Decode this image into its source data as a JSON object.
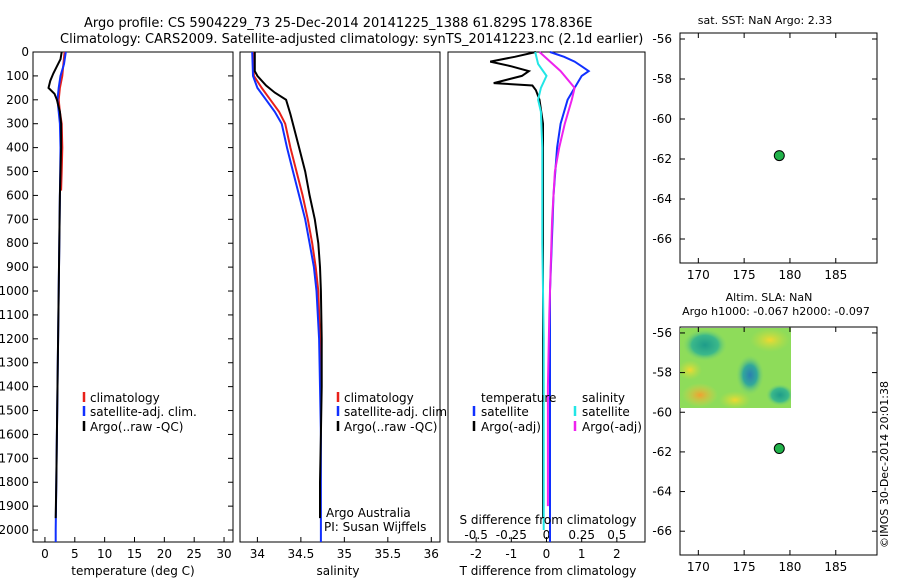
{
  "header": {
    "line1": "Argo profile: CS 5904229_73 25-Dec-2014 20141225_1388 61.829S 178.836E",
    "line2": "Climatology: CARS2009. Satellite-adjusted climatology: synTS_20141223.nc (2.1d earlier)"
  },
  "colors": {
    "climatology": "#e8201a",
    "satellite": "#1030ff",
    "argo": "#000000",
    "sal_satellite": "#22e6e6",
    "sal_argo": "#ee22ee",
    "marker": "#21b24a"
  },
  "chart_data": [
    {
      "type": "line",
      "id": "temperature",
      "xlabel": "temperature (deg C)",
      "ylabel": "",
      "xlim": [
        -2,
        31.5
      ],
      "ylim": [
        0,
        2050
      ],
      "y_inverted": true,
      "xticks": [
        "0",
        "5",
        "10",
        "15",
        "20",
        "25",
        "30"
      ],
      "yticks": [
        "0",
        "100",
        "200",
        "300",
        "400",
        "500",
        "600",
        "700",
        "800",
        "900",
        "1000",
        "1100",
        "1200",
        "1300",
        "1400",
        "1500",
        "1600",
        "1700",
        "1800",
        "1900",
        "2000"
      ],
      "legend": [
        "climatology",
        "satellite-adj. clim.",
        "Argo(..raw -QC)"
      ],
      "legend_position": "center-left",
      "series": [
        {
          "name": "climatology",
          "points": [
            [
              3.3,
              0
            ],
            [
              3.1,
              50
            ],
            [
              2.9,
              100
            ],
            [
              2.5,
              150
            ],
            [
              2.3,
              200
            ],
            [
              2.5,
              250
            ],
            [
              2.8,
              300
            ],
            [
              2.9,
              400
            ],
            [
              2.8,
              500
            ],
            [
              2.7,
              580
            ]
          ]
        },
        {
          "name": "satellite-adj. clim.",
          "points": [
            [
              3.5,
              0
            ],
            [
              3.2,
              50
            ],
            [
              2.6,
              100
            ],
            [
              2.3,
              150
            ],
            [
              2.1,
              200
            ],
            [
              2.3,
              250
            ],
            [
              2.5,
              300
            ],
            [
              2.6,
              400
            ],
            [
              2.5,
              600
            ],
            [
              2.4,
              800
            ],
            [
              2.3,
              1000
            ],
            [
              2.2,
              1200
            ],
            [
              2.1,
              1400
            ],
            [
              2.0,
              1600
            ],
            [
              1.9,
              1800
            ],
            [
              1.8,
              2000
            ],
            [
              1.8,
              2050
            ]
          ]
        },
        {
          "name": "Argo(..raw -QC)",
          "points": [
            [
              2.8,
              0
            ],
            [
              2.6,
              30
            ],
            [
              2.0,
              60
            ],
            [
              1.4,
              90
            ],
            [
              0.9,
              120
            ],
            [
              0.6,
              150
            ],
            [
              1.6,
              175
            ],
            [
              2.0,
              200
            ],
            [
              2.5,
              250
            ],
            [
              2.7,
              300
            ],
            [
              2.7,
              400
            ],
            [
              2.6,
              500
            ],
            [
              2.5,
              600
            ],
            [
              2.4,
              800
            ],
            [
              2.3,
              1000
            ],
            [
              2.2,
              1200
            ],
            [
              2.1,
              1400
            ],
            [
              2.0,
              1600
            ],
            [
              1.9,
              1800
            ],
            [
              1.8,
              1950
            ]
          ]
        }
      ]
    },
    {
      "type": "line",
      "id": "salinity",
      "xlabel": "salinity",
      "xlim": [
        33.8,
        36.1
      ],
      "ylim": [
        0,
        2050
      ],
      "y_inverted": true,
      "xticks": [
        "34",
        "34.5",
        "35",
        "35.5",
        "36"
      ],
      "legend": [
        "climatology",
        "satellite-adj. clim.",
        "Argo(..raw -QC)"
      ],
      "legend_position": "center-right",
      "annotations": [
        "Argo Australia",
        "PI: Susan Wijffels"
      ],
      "series": [
        {
          "name": "climatology",
          "points": [
            [
              33.95,
              0
            ],
            [
              33.96,
              100
            ],
            [
              34.05,
              150
            ],
            [
              34.15,
              200
            ],
            [
              34.25,
              250
            ],
            [
              34.32,
              300
            ],
            [
              34.38,
              400
            ],
            [
              34.45,
              500
            ],
            [
              34.52,
              600
            ],
            [
              34.58,
              700
            ],
            [
              34.63,
              800
            ],
            [
              34.67,
              900
            ],
            [
              34.7,
              1000
            ],
            [
              34.72,
              1200
            ],
            [
              34.73,
              1400
            ]
          ]
        },
        {
          "name": "satellite-adj. clim.",
          "points": [
            [
              33.94,
              0
            ],
            [
              33.95,
              100
            ],
            [
              34.0,
              150
            ],
            [
              34.1,
              200
            ],
            [
              34.2,
              250
            ],
            [
              34.28,
              300
            ],
            [
              34.34,
              400
            ],
            [
              34.41,
              500
            ],
            [
              34.48,
              600
            ],
            [
              34.55,
              700
            ],
            [
              34.6,
              800
            ],
            [
              34.65,
              900
            ],
            [
              34.68,
              1000
            ],
            [
              34.71,
              1200
            ],
            [
              34.72,
              1400
            ],
            [
              34.73,
              1600
            ],
            [
              34.73,
              1800
            ],
            [
              34.73,
              2050
            ]
          ]
        },
        {
          "name": "Argo(..raw -QC)",
          "points": [
            [
              33.97,
              0
            ],
            [
              33.97,
              80
            ],
            [
              34.0,
              100
            ],
            [
              34.1,
              140
            ],
            [
              34.2,
              170
            ],
            [
              34.33,
              200
            ],
            [
              34.38,
              260
            ],
            [
              34.48,
              400
            ],
            [
              34.55,
              500
            ],
            [
              34.6,
              600
            ],
            [
              34.66,
              700
            ],
            [
              34.7,
              800
            ],
            [
              34.72,
              900
            ],
            [
              34.73,
              1000
            ],
            [
              34.74,
              1200
            ],
            [
              34.74,
              1400
            ],
            [
              34.73,
              1600
            ],
            [
              34.72,
              1800
            ],
            [
              34.72,
              1950
            ]
          ]
        }
      ]
    },
    {
      "type": "line",
      "id": "difference",
      "xlabel": "T difference from climatology",
      "xlabel_top": "S difference from climatology",
      "xlim": [
        -2.8,
        2.8
      ],
      "ylim": [
        0,
        2050
      ],
      "y_inverted": true,
      "xticks": [
        "-2",
        "-1",
        "0",
        "1",
        "2"
      ],
      "xticks_S": [
        "-0.5",
        "-0.25",
        "0",
        "0.25",
        "0.5"
      ],
      "legend_left_title": "temperature",
      "legend_left": [
        "satellite",
        "Argo(-adj)"
      ],
      "legend_right_title": "salinity",
      "legend_right": [
        "satellite",
        "Argo(-adj)"
      ],
      "series": [
        {
          "name": "T satellite",
          "points": [
            [
              0.1,
              0
            ],
            [
              0.5,
              20
            ],
            [
              0.8,
              40
            ],
            [
              1.0,
              60
            ],
            [
              1.2,
              80
            ],
            [
              1.0,
              100
            ],
            [
              0.8,
              150
            ],
            [
              0.6,
              200
            ],
            [
              0.4,
              300
            ],
            [
              0.3,
              400
            ],
            [
              0.2,
              600
            ],
            [
              0.15,
              800
            ],
            [
              0.1,
              1000
            ],
            [
              0.1,
              1500
            ],
            [
              0.1,
              2000
            ],
            [
              0.1,
              2050
            ]
          ]
        },
        {
          "name": "T Argo(-adj)",
          "points": [
            [
              -0.3,
              0
            ],
            [
              -0.9,
              20
            ],
            [
              -1.6,
              40
            ],
            [
              -1.0,
              60
            ],
            [
              -0.5,
              80
            ],
            [
              -0.7,
              100
            ],
            [
              -1.5,
              130
            ],
            [
              -0.4,
              140
            ],
            [
              -0.3,
              160
            ],
            [
              -0.2,
              200
            ],
            [
              -0.1,
              300
            ],
            [
              -0.1,
              500
            ],
            [
              -0.1,
              800
            ],
            [
              -0.1,
              1000
            ],
            [
              -0.1,
              1500
            ],
            [
              -0.1,
              1950
            ]
          ]
        },
        {
          "name": "S satellite",
          "points": [
            [
              -0.08,
              0
            ],
            [
              -0.06,
              50
            ],
            [
              0.0,
              100
            ],
            [
              -0.04,
              150
            ],
            [
              -0.06,
              200
            ],
            [
              -0.04,
              250
            ],
            [
              -0.03,
              400
            ],
            [
              -0.03,
              800
            ],
            [
              -0.02,
              1200
            ],
            [
              -0.02,
              2000
            ]
          ]
        },
        {
          "name": "S Argo(-adj)",
          "points": [
            [
              -0.05,
              0
            ],
            [
              0.1,
              80
            ],
            [
              0.2,
              150
            ],
            [
              0.18,
              200
            ],
            [
              0.13,
              300
            ],
            [
              0.09,
              400
            ],
            [
              0.06,
              500
            ],
            [
              0.04,
              700
            ],
            [
              0.03,
              900
            ],
            [
              0.02,
              1100
            ],
            [
              0.01,
              1400
            ],
            [
              0.01,
              1900
            ]
          ]
        }
      ]
    },
    {
      "type": "scatter",
      "id": "sst_map",
      "title": "sat. SST: NaN Argo: 2.33",
      "xlim": [
        168,
        189.5
      ],
      "ylim": [
        -67.2,
        -55.7
      ],
      "xticks": [
        "170",
        "175",
        "180",
        "185"
      ],
      "yticks": [
        "-56",
        "-58",
        "-60",
        "-62",
        "-64",
        "-66"
      ],
      "points": [
        [
          178.836,
          -61.829
        ]
      ]
    },
    {
      "type": "heatmap",
      "id": "sla_map",
      "title_line1": "Altim. SLA: NaN",
      "title_line2": "Argo h1000: -0.067 h2000: -0.097",
      "xlim": [
        168,
        189.5
      ],
      "ylim": [
        -67.2,
        -55.7
      ],
      "xticks": [
        "170",
        "175",
        "180",
        "185"
      ],
      "yticks": [
        "-56",
        "-58",
        "-60",
        "-62",
        "-64",
        "-66"
      ],
      "field_extent": [
        168,
        180,
        -60.0,
        -56.0
      ],
      "points": [
        [
          178.836,
          -61.829
        ]
      ]
    }
  ],
  "footer": {
    "timestamp": "©IMOS 30-Dec-2014 20:01:38"
  }
}
